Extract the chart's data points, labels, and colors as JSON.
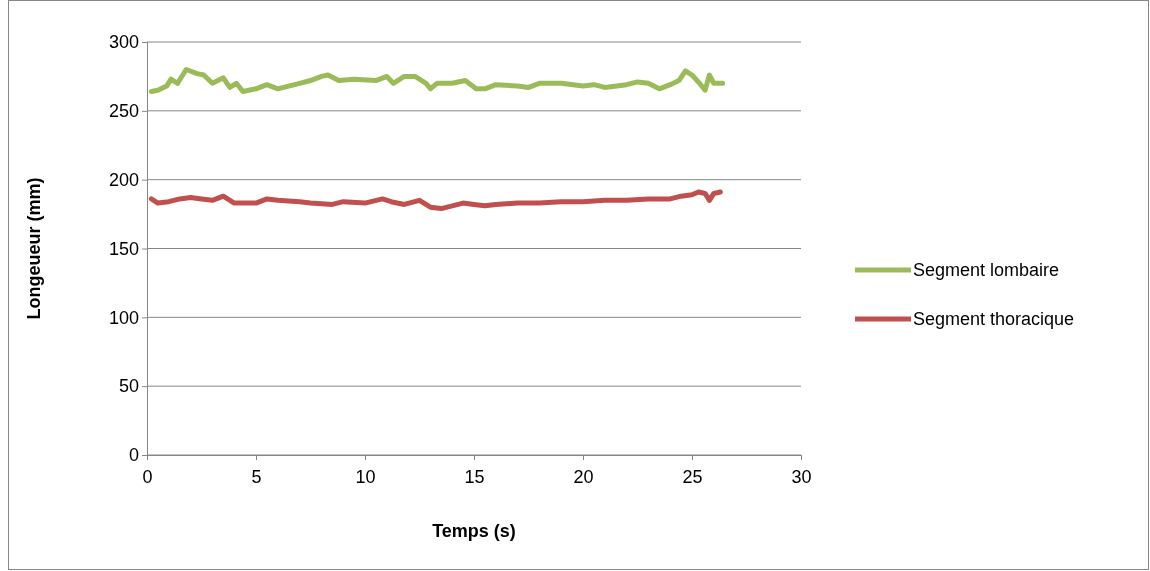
{
  "chart_data": {
    "type": "line",
    "xlabel": "Temps (s)",
    "ylabel": "Longeueur (mm)",
    "xlim": [
      0,
      30
    ],
    "xticks": [
      0,
      5,
      10,
      15,
      20,
      25,
      30
    ],
    "ylim": [
      0,
      300
    ],
    "yticks": [
      0,
      50,
      100,
      150,
      200,
      250,
      300
    ],
    "grid": "y",
    "legend": "right",
    "marker": "none",
    "line_style": "solid",
    "series": [
      {
        "name": "Segment lombaire",
        "color": "#9bbb59",
        "x": [
          0.2,
          0.5,
          0.9,
          1.1,
          1.4,
          1.8,
          2.3,
          2.6,
          3.0,
          3.5,
          3.8,
          4.1,
          4.4,
          5.0,
          5.5,
          6.0,
          6.5,
          7.0,
          7.5,
          8.0,
          8.3,
          8.8,
          9.5,
          10.5,
          11.0,
          11.3,
          11.8,
          12.3,
          12.8,
          13.0,
          13.3,
          14.0,
          14.6,
          15.1,
          15.5,
          16.0,
          17.0,
          17.5,
          18.0,
          19.0,
          20.0,
          20.5,
          21.0,
          22.0,
          22.5,
          23.0,
          23.5,
          24.0,
          24.4,
          24.7,
          25.0,
          25.4,
          25.6,
          25.8,
          26.0,
          26.4
        ],
        "values": [
          264,
          265,
          268,
          273,
          270,
          280,
          277,
          276,
          270,
          274,
          267,
          270,
          264,
          266,
          269,
          266,
          268,
          270,
          272,
          275,
          276,
          272,
          273,
          272,
          275,
          270,
          275,
          275,
          270,
          266,
          270,
          270,
          272,
          266,
          266,
          269,
          268,
          267,
          270,
          270,
          268,
          269,
          267,
          269,
          271,
          270,
          266,
          269,
          272,
          279,
          276,
          269,
          265,
          276,
          270,
          270
        ]
      },
      {
        "name": "Segment thoracique",
        "color": "#c0504d",
        "x": [
          0.2,
          0.5,
          1.0,
          1.5,
          2.0,
          2.5,
          3.0,
          3.5,
          4.0,
          5.0,
          5.5,
          6.0,
          7.0,
          7.5,
          8.5,
          9.0,
          10.0,
          10.8,
          11.2,
          11.8,
          12.5,
          13.0,
          13.5,
          14.0,
          14.5,
          15.0,
          15.5,
          16.0,
          17.0,
          18.0,
          19.0,
          20.0,
          21.0,
          22.0,
          23.0,
          24.0,
          24.5,
          25.0,
          25.3,
          25.6,
          25.8,
          26.0,
          26.3
        ],
        "values": [
          186,
          183,
          184,
          186,
          187,
          186,
          185,
          188,
          183,
          183,
          186,
          185,
          184,
          183,
          182,
          184,
          183,
          186,
          184,
          182,
          185,
          180,
          179,
          181,
          183,
          182,
          181,
          182,
          183,
          183,
          184,
          184,
          185,
          185,
          186,
          186,
          188,
          189,
          191,
          190,
          185,
          190,
          191
        ]
      }
    ]
  }
}
